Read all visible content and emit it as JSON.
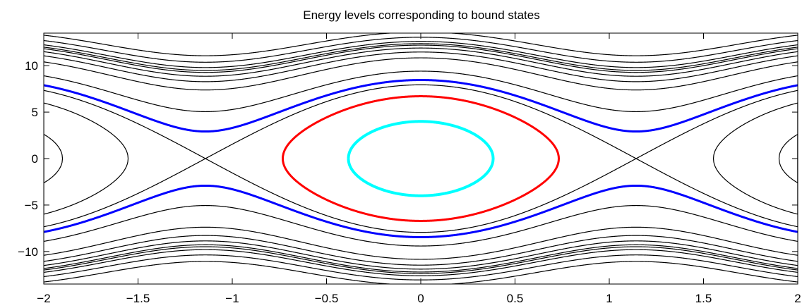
{
  "chart_data": {
    "type": "line",
    "title": "Energy levels corresponding to bound states",
    "xlabel": "",
    "ylabel": "",
    "xlim": [
      -2,
      2
    ],
    "ylim": [
      -13.5,
      13.5
    ],
    "x_ticks": [
      -2,
      -1.5,
      -1,
      -0.5,
      0,
      0.5,
      1,
      1.5,
      2
    ],
    "x_tick_labels": [
      "−2",
      "−1.5",
      "−1",
      "−0.5",
      "0",
      "0.5",
      "1",
      "1.5",
      "2"
    ],
    "y_ticks": [
      -10,
      -5,
      0,
      5,
      10
    ],
    "y_tick_labels": [
      "−10",
      "−5",
      "0",
      "5",
      "10"
    ],
    "grid": false,
    "legend": "none",
    "model": {
      "description_of_curves": "level curves of E(x,p) = p^2 - A*cos(k*x)",
      "A": 31.5,
      "k": 2.75
    },
    "series": [
      {
        "kind": "contour",
        "energy": -15.5,
        "color": "#00ffff",
        "width": 4
      },
      {
        "kind": "contour",
        "energy": 13.5,
        "color": "#ff0000",
        "width": 3
      },
      {
        "kind": "contour",
        "energy": 40.0,
        "color": "#0000ff",
        "width": 3
      }
    ],
    "background_contours": {
      "color": "#000000",
      "width": 1.2,
      "energies": [
        -15.5,
        13.5,
        40.0,
        57.0,
        86.0,
        100.0,
        110.0,
        117.5,
        121.5,
        127.5,
        139.0,
        154.0
      ]
    }
  }
}
